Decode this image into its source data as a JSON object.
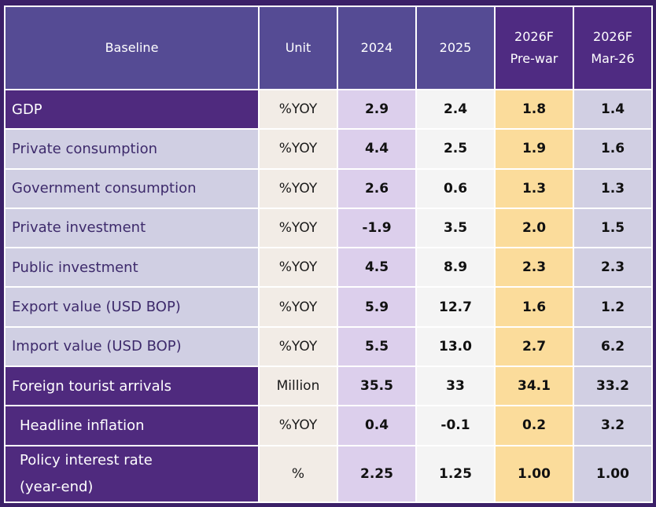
{
  "colors": {
    "background": "#3b2068",
    "header_main": "#554b94",
    "header_forecast": "#4f2b82",
    "label_dark": "#4f2a7e",
    "label_light": "#d0cfe3",
    "unit_bg": "#f2ece6",
    "col_2024": "#dccfec",
    "col_2025": "#f4f4f4",
    "col_prewar": "#fbdc9b",
    "col_mar26": "#d1cfe3"
  },
  "table": {
    "headers": {
      "baseline": "Baseline",
      "unit": "Unit",
      "y2024": "2024",
      "y2025": "2025",
      "prewar_line1": "2026F",
      "prewar_line2": "Pre-war",
      "mar26_line1": "2026F",
      "mar26_line2": "Mar-26"
    },
    "rows": [
      {
        "label": "GDP",
        "sub": "",
        "unit": "%YOY",
        "v2024": "2.9",
        "v2025": "2.4",
        "prewar": "1.8",
        "mar26": "1.4"
      },
      {
        "label": "Private consumption",
        "sub": "",
        "unit": "%YOY",
        "v2024": "4.4",
        "v2025": "2.5",
        "prewar": "1.9",
        "mar26": "1.6"
      },
      {
        "label": "Government consumption",
        "sub": "",
        "unit": "%YOY",
        "v2024": "2.6",
        "v2025": "0.6",
        "prewar": "1.3",
        "mar26": "1.3"
      },
      {
        "label": "Private investment",
        "sub": "",
        "unit": "%YOY",
        "v2024": "-1.9",
        "v2025": "3.5",
        "prewar": "2.0",
        "mar26": "1.5"
      },
      {
        "label": "Public investment",
        "sub": "",
        "unit": "%YOY",
        "v2024": "4.5",
        "v2025": "8.9",
        "prewar": "2.3",
        "mar26": "2.3"
      },
      {
        "label": "Export value",
        "sub": " (USD BOP)",
        "unit": "%YOY",
        "v2024": "5.9",
        "v2025": "12.7",
        "prewar": "1.6",
        "mar26": "1.2"
      },
      {
        "label": "Import value",
        "sub": " (USD BOP)",
        "unit": "%YOY",
        "v2024": "5.5",
        "v2025": "13.0",
        "prewar": "2.7",
        "mar26": "6.2"
      },
      {
        "label": "Foreign tourist arrivals",
        "sub": "",
        "unit": "Million",
        "v2024": "35.5",
        "v2025": "33",
        "prewar": "34.1",
        "mar26": "33.2"
      },
      {
        "label": "Headline inflation",
        "sub": "",
        "unit": "%YOY",
        "v2024": "0.4",
        "v2025": "-0.1",
        "prewar": "0.2",
        "mar26": "3.2"
      },
      {
        "label": "Policy interest rate",
        "label_line2": "(year-end)",
        "sub": "",
        "unit": "%",
        "v2024": "2.25",
        "v2025": "1.25",
        "prewar": "1.00",
        "mar26": "1.00"
      }
    ]
  }
}
